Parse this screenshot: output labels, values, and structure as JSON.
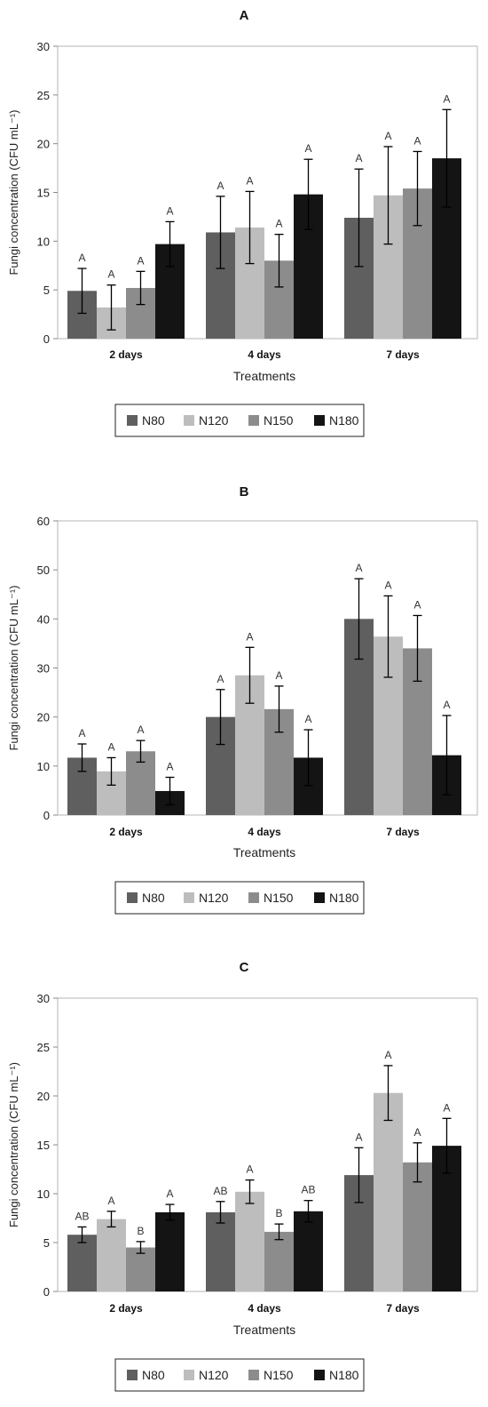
{
  "series_colors": [
    "#5f5f5f",
    "#bdbdbd",
    "#8c8c8c",
    "#141414"
  ],
  "chart_data": [
    {
      "type": "bar",
      "title": "A",
      "xlabel": "Treatments",
      "ylabel": "Fungi concentration (CFU mL⁻¹)",
      "ylim": [
        0,
        30
      ],
      "yticks": [
        0,
        5,
        10,
        15,
        20,
        25,
        30
      ],
      "grid": false,
      "legend": "bottom",
      "categories": [
        "2 days",
        "4 days",
        "7 days"
      ],
      "series": [
        {
          "name": "N80",
          "values": [
            4.9,
            10.9,
            12.4
          ],
          "errors": [
            2.3,
            3.7,
            5.0
          ],
          "letters": [
            "A",
            "A",
            "A"
          ]
        },
        {
          "name": "N120",
          "values": [
            3.2,
            11.4,
            14.7
          ],
          "errors": [
            2.3,
            3.7,
            5.0
          ],
          "letters": [
            "A",
            "A",
            "A"
          ]
        },
        {
          "name": "N150",
          "values": [
            5.2,
            8.0,
            15.4
          ],
          "errors": [
            1.7,
            2.7,
            3.8
          ],
          "letters": [
            "A",
            "A",
            "A"
          ]
        },
        {
          "name": "N180",
          "values": [
            9.7,
            14.8,
            18.5
          ],
          "errors": [
            2.3,
            3.6,
            5.0
          ],
          "letters": [
            "A",
            "A",
            "A"
          ]
        }
      ]
    },
    {
      "type": "bar",
      "title": "B",
      "xlabel": "Treatments",
      "ylabel": "Fungi concentration (CFU mL⁻¹)",
      "ylim": [
        0,
        60
      ],
      "yticks": [
        0,
        10,
        20,
        30,
        40,
        50,
        60
      ],
      "grid": false,
      "legend": "bottom",
      "categories": [
        "2 days",
        "4 days",
        "7 days"
      ],
      "series": [
        {
          "name": "N80",
          "values": [
            11.7,
            20.0,
            40.0
          ],
          "errors": [
            2.8,
            5.6,
            8.2
          ],
          "letters": [
            "A",
            "A",
            "A"
          ]
        },
        {
          "name": "N120",
          "values": [
            8.9,
            28.5,
            36.4
          ],
          "errors": [
            2.8,
            5.7,
            8.3
          ],
          "letters": [
            "A",
            "A",
            "A"
          ]
        },
        {
          "name": "N150",
          "values": [
            13.0,
            21.6,
            34.0
          ],
          "errors": [
            2.2,
            4.7,
            6.7
          ],
          "letters": [
            "A",
            "A",
            "A"
          ]
        },
        {
          "name": "N180",
          "values": [
            4.9,
            11.7,
            12.2
          ],
          "errors": [
            2.8,
            5.7,
            8.1
          ],
          "letters": [
            "A",
            "A",
            "A"
          ]
        }
      ]
    },
    {
      "type": "bar",
      "title": "C",
      "xlabel": "Treatments",
      "ylabel": "Fungi concentration (CFU mL⁻¹)",
      "ylim": [
        0,
        30
      ],
      "yticks": [
        0,
        5,
        10,
        15,
        20,
        25,
        30
      ],
      "grid": false,
      "legend": "bottom",
      "categories": [
        "2 days",
        "4 days",
        "7 days"
      ],
      "series": [
        {
          "name": "N80",
          "values": [
            5.8,
            8.1,
            11.9
          ],
          "errors": [
            0.8,
            1.1,
            2.8
          ],
          "letters": [
            "AB",
            "AB",
            "A"
          ]
        },
        {
          "name": "N120",
          "values": [
            7.4,
            10.2,
            20.3
          ],
          "errors": [
            0.8,
            1.2,
            2.8
          ],
          "letters": [
            "A",
            "A",
            "A"
          ]
        },
        {
          "name": "N150",
          "values": [
            4.5,
            6.1,
            13.2
          ],
          "errors": [
            0.6,
            0.8,
            2.0
          ],
          "letters": [
            "B",
            "B",
            "A"
          ]
        },
        {
          "name": "N180",
          "values": [
            8.1,
            8.2,
            14.9
          ],
          "errors": [
            0.8,
            1.1,
            2.8
          ],
          "letters": [
            "A",
            "AB",
            "A"
          ]
        }
      ]
    }
  ]
}
